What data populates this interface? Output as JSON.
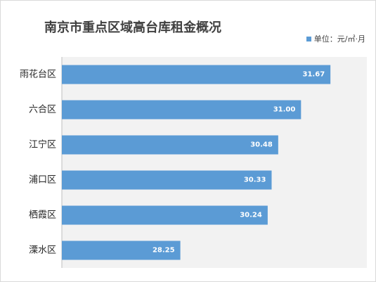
{
  "chart_data": {
    "type": "bar",
    "orientation": "horizontal",
    "title": "南京市重点区域高台库租金概况",
    "categories": [
      "雨花台区",
      "六合区",
      "江宁区",
      "浦口区",
      "栖霞区",
      "溧水区"
    ],
    "series": [
      {
        "name": "单位：元/㎡·月",
        "values": [
          31.67,
          31.0,
          30.48,
          30.33,
          30.24,
          28.25
        ],
        "value_labels": [
          "31.67",
          "31.00",
          "30.48",
          "30.33",
          "30.24",
          "28.25"
        ]
      }
    ],
    "xlim": [
      25.55,
      32.5
    ],
    "grid": false,
    "legend_position": "top-right",
    "bar_color": "#5b9bd5",
    "plot_background": "#f2f2f2"
  }
}
